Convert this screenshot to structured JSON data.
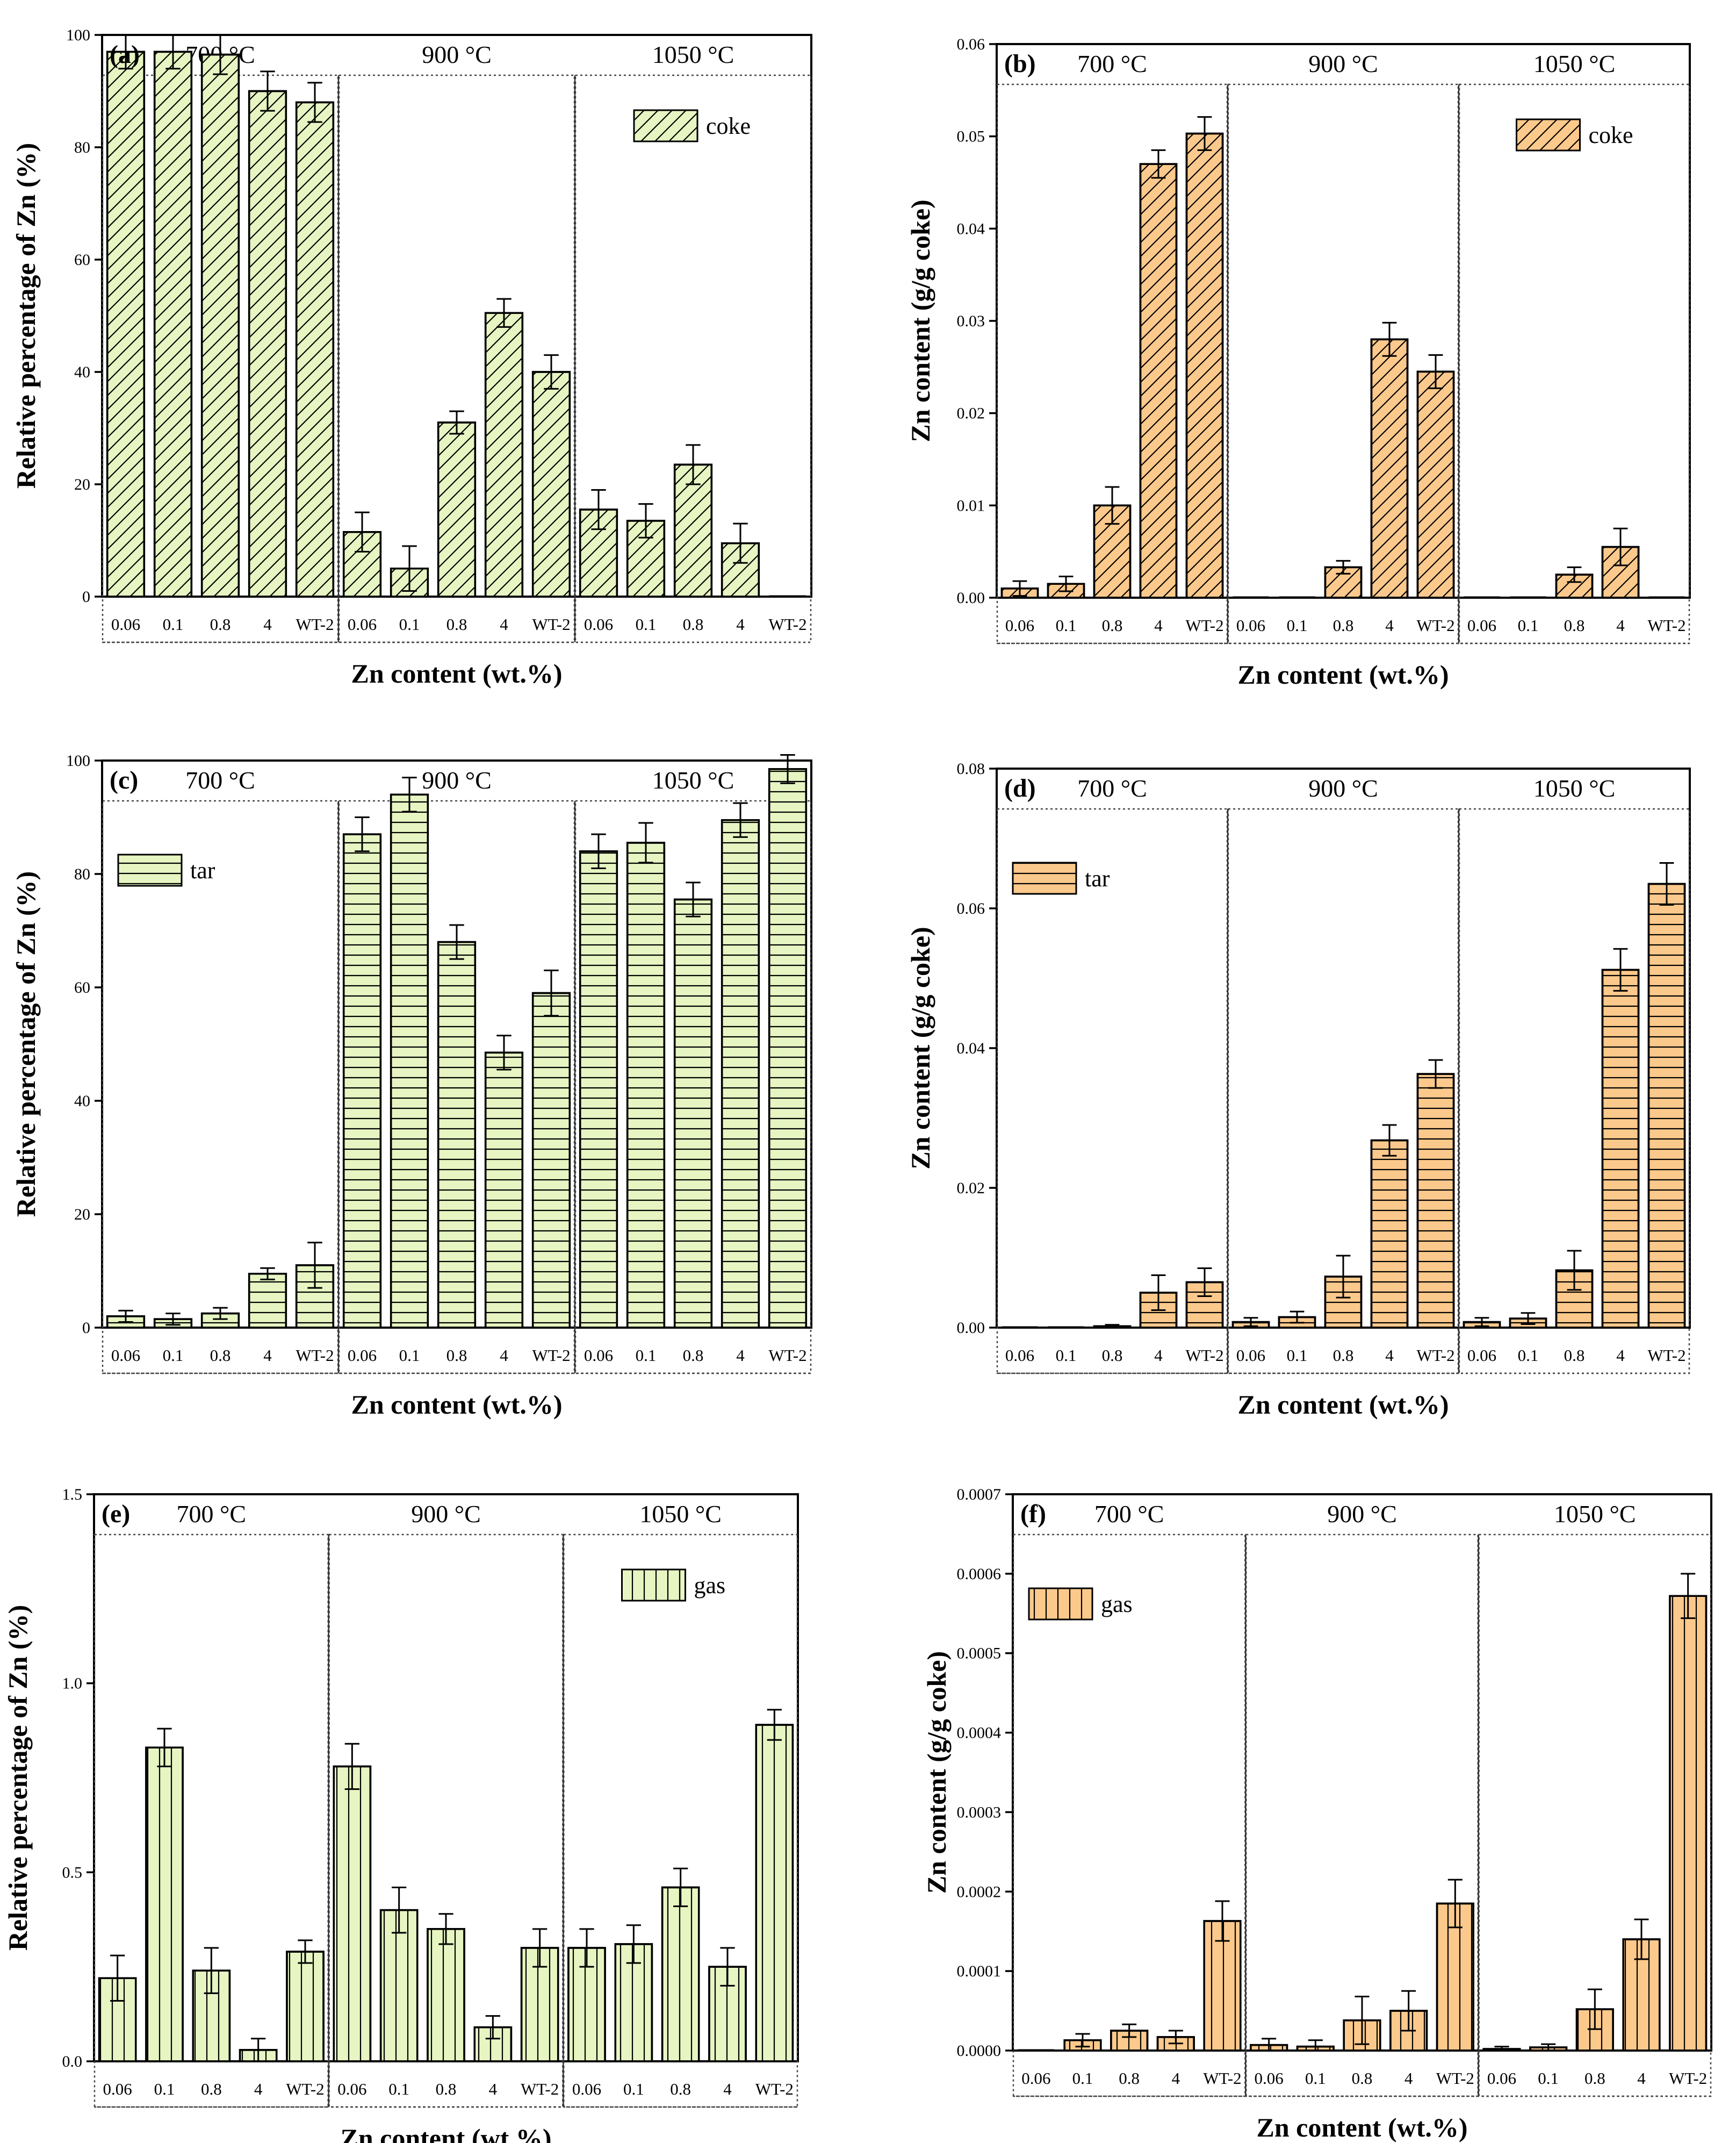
{
  "figure": {
    "categories": [
      "0.06",
      "0.1",
      "0.8",
      "4",
      "WT-2"
    ],
    "colors": {
      "green": "#e6f5c2",
      "orange": "#fcc98c",
      "axis": "#000000"
    }
  },
  "chart_data": [
    {
      "id": "a",
      "type": "bar",
      "label": "(a)",
      "legend": "coke",
      "pattern": "diag",
      "color": "#e6f5c2",
      "ylabel": "Relative percentage of Zn (%)",
      "xlabel": "Zn content (wt.%)",
      "ylim": [
        0,
        100
      ],
      "yticks": [
        "0",
        "20",
        "40",
        "60",
        "80",
        "100"
      ],
      "ytick_values": [
        0,
        20,
        40,
        60,
        80,
        100
      ],
      "legend_pos": "top-right",
      "groups": [
        {
          "temp": "700 °C",
          "values": [
            97,
            97,
            96.5,
            90,
            88
          ],
          "errors": [
            3,
            3,
            3.5,
            3.5,
            3.5
          ]
        },
        {
          "temp": "900 °C",
          "values": [
            11.5,
            5,
            31,
            50.5,
            40
          ],
          "errors": [
            3.5,
            4,
            2,
            2.5,
            3
          ]
        },
        {
          "temp": "1050 °C",
          "values": [
            15.5,
            13.5,
            23.5,
            9.5,
            0
          ],
          "errors": [
            3.5,
            3,
            3.5,
            3.5,
            0
          ]
        }
      ]
    },
    {
      "id": "b",
      "type": "bar",
      "label": "(b)",
      "legend": "coke",
      "pattern": "diag",
      "color": "#fcc98c",
      "ylabel": "Zn content (g/g coke)",
      "xlabel": "Zn content (wt.%)",
      "ylim": [
        0,
        0.06
      ],
      "yticks": [
        "0.00",
        "0.01",
        "0.02",
        "0.03",
        "0.04",
        "0.05",
        "0.06"
      ],
      "ytick_values": [
        0,
        0.01,
        0.02,
        0.03,
        0.04,
        0.05,
        0.06
      ],
      "legend_pos": "top-right",
      "groups": [
        {
          "temp": "700 °C",
          "values": [
            0.001,
            0.0015,
            0.01,
            0.047,
            0.0503
          ],
          "errors": [
            0.0008,
            0.0008,
            0.002,
            0.0015,
            0.0018
          ]
        },
        {
          "temp": "900 °C",
          "values": [
            0,
            0,
            0.0033,
            0.028,
            0.0245
          ],
          "errors": [
            0,
            0,
            0.0007,
            0.0018,
            0.0018
          ]
        },
        {
          "temp": "1050 °C",
          "values": [
            0,
            0,
            0.0025,
            0.0055,
            0
          ],
          "errors": [
            0,
            0,
            0.0008,
            0.002,
            0
          ]
        }
      ]
    },
    {
      "id": "c",
      "type": "bar",
      "label": "(c)",
      "legend": "tar",
      "pattern": "horiz",
      "color": "#e6f5c2",
      "ylabel": "Relative percentage of Zn (%)",
      "xlabel": "Zn content (wt.%)",
      "ylim": [
        0,
        100
      ],
      "yticks": [
        "0",
        "20",
        "40",
        "60",
        "80",
        "100"
      ],
      "ytick_values": [
        0,
        20,
        40,
        60,
        80,
        100
      ],
      "legend_pos": "top-left",
      "groups": [
        {
          "temp": "700 °C",
          "values": [
            2,
            1.5,
            2.5,
            9.5,
            11
          ],
          "errors": [
            1,
            1,
            1,
            1,
            4
          ]
        },
        {
          "temp": "900 °C",
          "values": [
            87,
            94,
            68,
            48.5,
            59
          ],
          "errors": [
            3,
            3,
            3,
            3,
            4
          ]
        },
        {
          "temp": "1050 °C",
          "values": [
            84,
            85.5,
            75.5,
            89.5,
            98.5
          ],
          "errors": [
            3,
            3.5,
            3,
            3,
            2.5
          ]
        }
      ]
    },
    {
      "id": "d",
      "type": "bar",
      "label": "(d)",
      "legend": "tar",
      "pattern": "horiz",
      "color": "#fcc98c",
      "ylabel": "Zn content (g/g coke)",
      "xlabel": "Zn content (wt.%)",
      "ylim": [
        0,
        0.08
      ],
      "yticks": [
        "0.00",
        "0.02",
        "0.04",
        "0.06",
        "0.08"
      ],
      "ytick_values": [
        0,
        0.02,
        0.04,
        0.06,
        0.08
      ],
      "legend_pos": "top-left",
      "groups": [
        {
          "temp": "700 °C",
          "values": [
            0,
            0,
            0.0002,
            0.005,
            0.0065
          ],
          "errors": [
            0,
            0,
            0.0002,
            0.0025,
            0.002
          ]
        },
        {
          "temp": "900 °C",
          "values": [
            0.0008,
            0.0015,
            0.0073,
            0.0268,
            0.0363
          ],
          "errors": [
            0.0006,
            0.0008,
            0.003,
            0.0022,
            0.002
          ]
        },
        {
          "temp": "1050 °C",
          "values": [
            0.0008,
            0.0013,
            0.0082,
            0.0512,
            0.0635
          ],
          "errors": [
            0.0006,
            0.0008,
            0.0028,
            0.003,
            0.003
          ]
        }
      ]
    },
    {
      "id": "e",
      "type": "bar",
      "label": "(e)",
      "legend": "gas",
      "pattern": "vert",
      "color": "#e6f5c2",
      "ylabel": "Relative percentage of Zn (%)",
      "xlabel": "Zn content (wt.%)",
      "ylim": [
        0,
        1.5
      ],
      "yticks": [
        "0.0",
        "0.5",
        "1.0",
        "1.5"
      ],
      "ytick_values": [
        0,
        0.5,
        1.0,
        1.5
      ],
      "legend_pos": "top-right",
      "groups": [
        {
          "temp": "700 °C",
          "values": [
            0.22,
            0.83,
            0.24,
            0.03,
            0.29
          ],
          "errors": [
            0.06,
            0.05,
            0.06,
            0.03,
            0.03
          ]
        },
        {
          "temp": "900 °C",
          "values": [
            0.78,
            0.4,
            0.35,
            0.09,
            0.3
          ],
          "errors": [
            0.06,
            0.06,
            0.04,
            0.03,
            0.05
          ]
        },
        {
          "temp": "1050 °C",
          "values": [
            0.3,
            0.31,
            0.46,
            0.25,
            0.89
          ],
          "errors": [
            0.05,
            0.05,
            0.05,
            0.05,
            0.04
          ]
        }
      ]
    },
    {
      "id": "f",
      "type": "bar",
      "label": "(f)",
      "legend": "gas",
      "pattern": "vert",
      "color": "#fcc98c",
      "ylabel": "Zn content (g/g coke)",
      "xlabel": "Zn content (wt.%)",
      "ylim": [
        0,
        0.0007
      ],
      "yticks": [
        "0.0000",
        "0.0001",
        "0.0002",
        "0.0003",
        "0.0004",
        "0.0005",
        "0.0006",
        "0.0007"
      ],
      "ytick_values": [
        0,
        0.0001,
        0.0002,
        0.0003,
        0.0004,
        0.0005,
        0.0006,
        0.0007
      ],
      "legend_pos": "top-left",
      "groups": [
        {
          "temp": "700 °C",
          "values": [
            0,
            1.3e-05,
            2.5e-05,
            1.7e-05,
            0.000163
          ],
          "errors": [
            0,
            8e-06,
            8e-06,
            8e-06,
            2.5e-05
          ]
        },
        {
          "temp": "900 °C",
          "values": [
            7e-06,
            5e-06,
            3.8e-05,
            5e-05,
            0.000185
          ],
          "errors": [
            8e-06,
            8e-06,
            3e-05,
            2.5e-05,
            3e-05
          ]
        },
        {
          "temp": "1050 °C",
          "values": [
            2e-06,
            4e-06,
            5.2e-05,
            0.00014,
            0.000572
          ],
          "errors": [
            3e-06,
            4e-06,
            2.5e-05,
            2.5e-05,
            2.8e-05
          ]
        }
      ]
    }
  ]
}
